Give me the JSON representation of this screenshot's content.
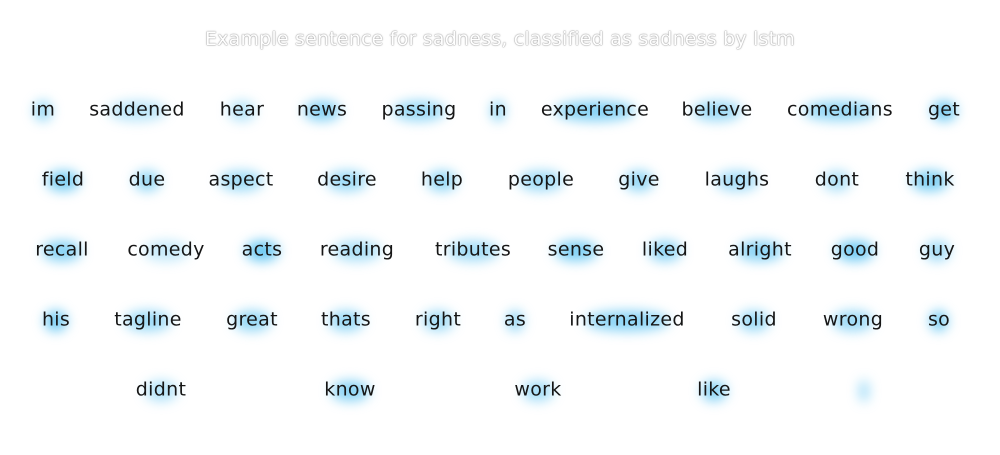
{
  "title": "Example sentence for sadness, classified as sadness by lstm",
  "highlight_color": "#40b9f0",
  "text_color": "#161616",
  "rows": [
    [
      {
        "text": "im",
        "attention": 0.5
      },
      {
        "text": "saddened",
        "attention": 0.18
      },
      {
        "text": "hear",
        "attention": 0.22
      },
      {
        "text": "news",
        "attention": 0.6
      },
      {
        "text": "passing",
        "attention": 0.48
      },
      {
        "text": "in",
        "attention": 0.6
      },
      {
        "text": "experience",
        "attention": 0.62
      },
      {
        "text": "believe",
        "attention": 0.45
      },
      {
        "text": "comedians",
        "attention": 0.5
      },
      {
        "text": "get",
        "attention": 0.75
      }
    ],
    [
      {
        "text": "field",
        "attention": 0.72
      },
      {
        "text": "due",
        "attention": 0.5
      },
      {
        "text": "aspect",
        "attention": 0.42
      },
      {
        "text": "desire",
        "attention": 0.45
      },
      {
        "text": "help",
        "attention": 0.52
      },
      {
        "text": "people",
        "attention": 0.42
      },
      {
        "text": "give",
        "attention": 0.52
      },
      {
        "text": "laughs",
        "attention": 0.38
      },
      {
        "text": "dont",
        "attention": 0.3
      },
      {
        "text": "think",
        "attention": 0.7
      }
    ],
    [
      {
        "text": "recall",
        "attention": 0.62
      },
      {
        "text": "comedy",
        "attention": 0.1
      },
      {
        "text": "acts",
        "attention": 0.85
      },
      {
        "text": "reading",
        "attention": 0.32
      },
      {
        "text": "tributes",
        "attention": 0.4
      },
      {
        "text": "sense",
        "attention": 0.68
      },
      {
        "text": "liked",
        "attention": 0.55
      },
      {
        "text": "alright",
        "attention": 0.58
      },
      {
        "text": "good",
        "attention": 0.78
      },
      {
        "text": "guy",
        "attention": 0.42
      }
    ],
    [
      {
        "text": "his",
        "attention": 0.82
      },
      {
        "text": "tagline",
        "attention": 0.45
      },
      {
        "text": "great",
        "attention": 0.52
      },
      {
        "text": "thats",
        "attention": 0.48
      },
      {
        "text": "right",
        "attention": 0.4
      },
      {
        "text": "as",
        "attention": 0.55
      },
      {
        "text": "internalized",
        "attention": 0.58
      },
      {
        "text": "solid",
        "attention": 0.46
      },
      {
        "text": "wrong",
        "attention": 0.44
      },
      {
        "text": "so",
        "attention": 0.8
      }
    ],
    [
      {
        "text": "didnt",
        "attention": 0.28
      },
      {
        "text": "know",
        "attention": 0.6
      },
      {
        "text": "work",
        "attention": 0.38
      },
      {
        "text": "like",
        "attention": 0.62
      },
      {
        "text": "",
        "attention": 0.55
      }
    ]
  ]
}
